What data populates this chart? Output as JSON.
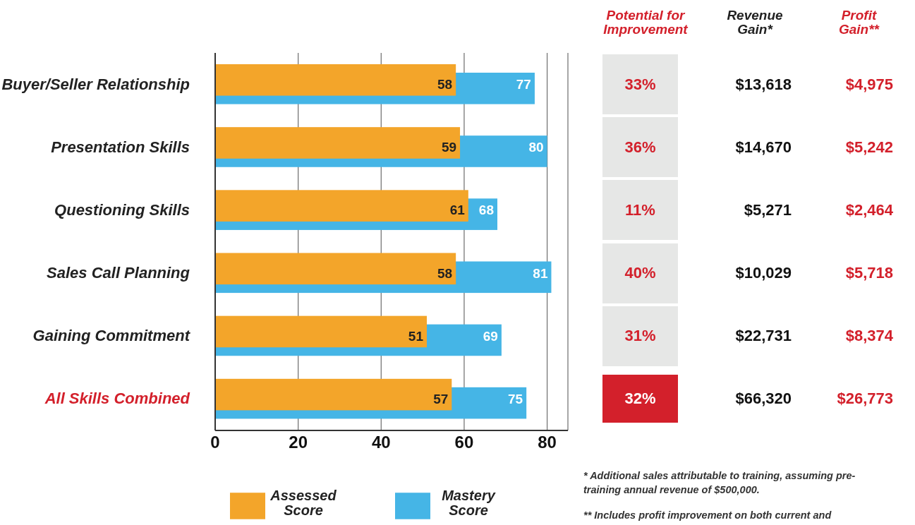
{
  "chart_data": {
    "type": "bar",
    "orientation": "horizontal",
    "categories": [
      "Buyer/Seller Relationship",
      "Presentation Skills",
      "Questioning Skills",
      "Sales Call Planning",
      "Gaining Commitment",
      "All Skills Combined"
    ],
    "series": [
      {
        "name": "Assessed Score",
        "color": "#f3a52a",
        "values": [
          58,
          59,
          61,
          58,
          51,
          57
        ]
      },
      {
        "name": "Mastery Score",
        "color": "#45b5e6",
        "values": [
          77,
          80,
          68,
          81,
          69,
          75
        ]
      }
    ],
    "xlim": [
      0,
      85
    ],
    "xticks": [
      0,
      20,
      40,
      60,
      80
    ],
    "grid": "x",
    "data_labels": true,
    "legend": "bottom",
    "annotations": [
      "Potential for Improvement",
      "Revenue Gain*",
      "Profit Gain**",
      "33%",
      "$13,618",
      "$4,975",
      "36%",
      "$14,670",
      "$5,242",
      "11%",
      "$5,271",
      "$2,464",
      "40%",
      "$10,029",
      "$5,718",
      "31%",
      "$22,731",
      "$8,374",
      "32%",
      "$66,320",
      "$26,773",
      "* Additional sales attributable to training, assuming pre-training annual revenue of $500,000.",
      "** Includes profit improvement on both current and"
    ]
  }
}
